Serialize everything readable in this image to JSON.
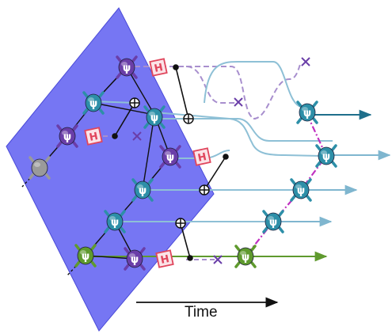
{
  "time_axis": {
    "label": "Time"
  },
  "gate_symbols": {
    "hadamard": "H",
    "psi": "ψ"
  },
  "colors": {
    "plane_fill": "#6f6ff2",
    "plane_stroke": "#4a4ad8",
    "photon_blue": "#2d8fa8",
    "photon_purple": "#6a3ea8",
    "photon_green": "#5f9a2e",
    "photon_grey": "#9a9a9a",
    "arrow_blue": "#1f6f8b",
    "arrow_light": "#7fb6cf",
    "line_blue": "#8ec0d6",
    "line_purple_dashed": "#a88fce",
    "line_green": "#5f9a2e",
    "hadamard_red": "#e0455c",
    "hadamard_fill": "#fbe3e7",
    "measure_x": "#6a3ea8",
    "fusion_dashdot": "#c030c0",
    "edge_black": "#111111"
  }
}
